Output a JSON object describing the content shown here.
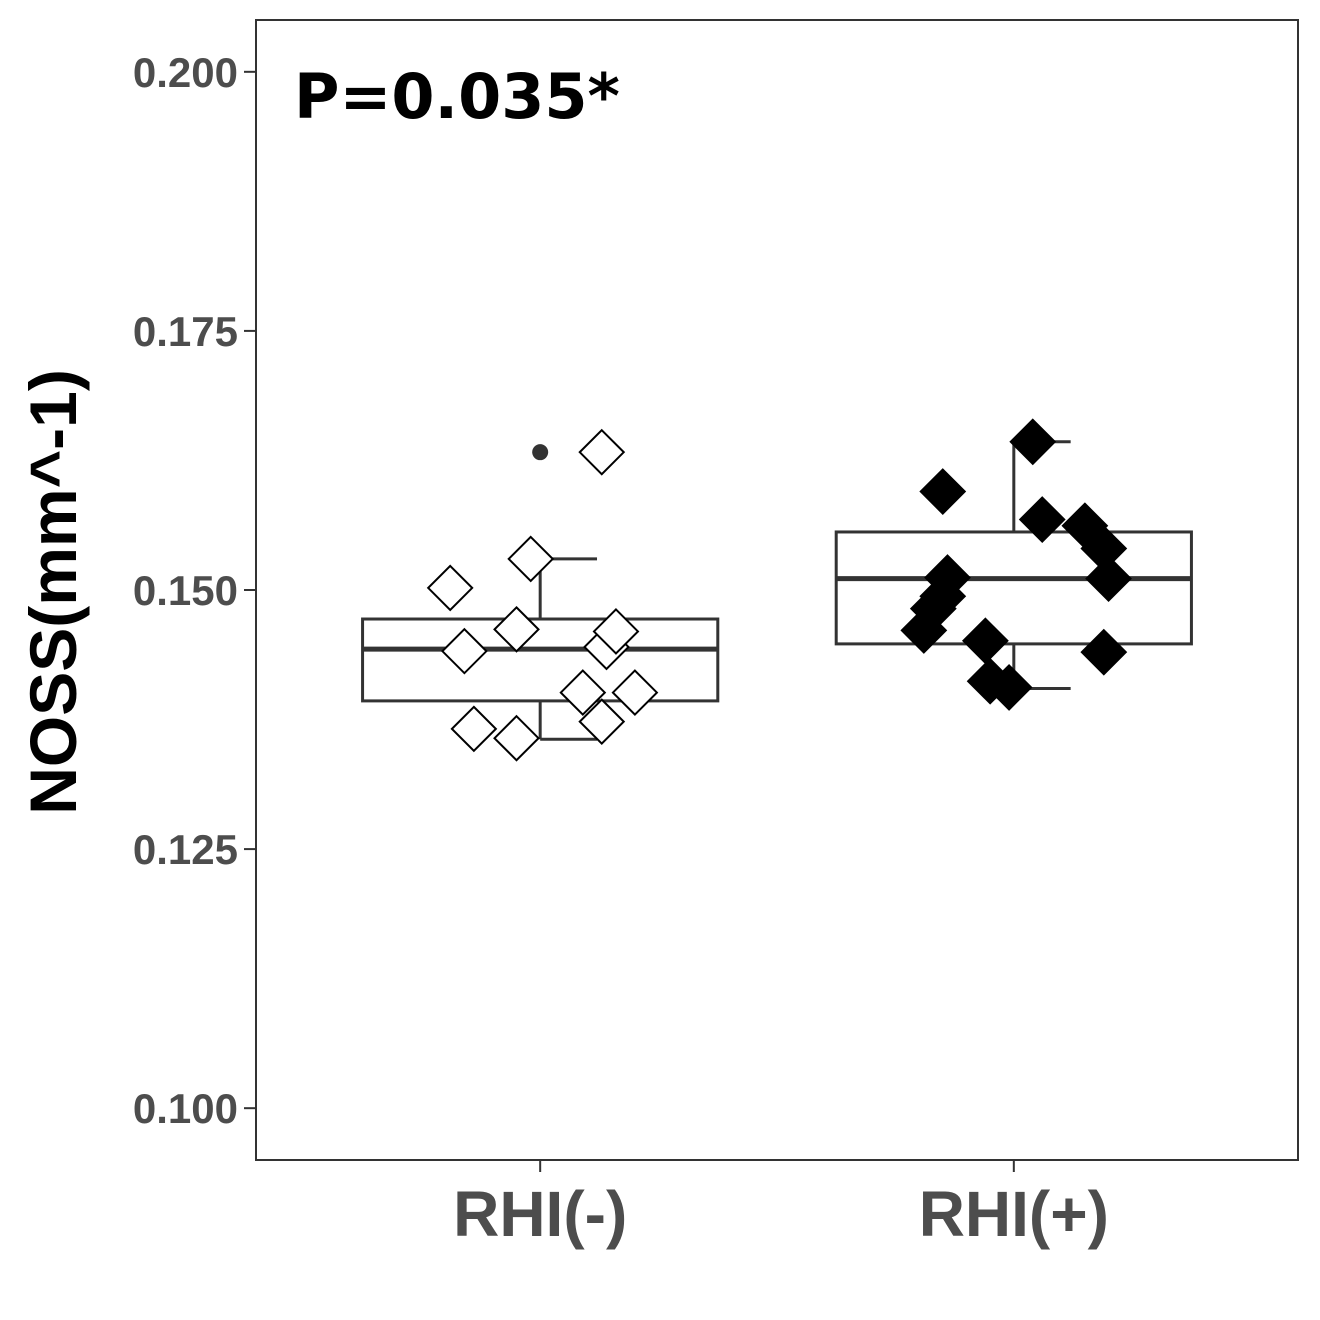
{
  "chart_data": {
    "type": "box",
    "ylabel": "NOSS(mm^-1)",
    "xlabel": "",
    "ylim": [
      0.095,
      0.205
    ],
    "y_ticks": [
      "0.100",
      "0.125",
      "0.150",
      "0.175",
      "0.200"
    ],
    "y_tick_values": [
      0.1,
      0.125,
      0.15,
      0.175,
      0.2
    ],
    "annotation": "P=0.035*",
    "grid": false,
    "legend": "none",
    "categories": [
      "RHI(-)",
      "RHI(+)"
    ],
    "groups": [
      {
        "category": "RHI(-)",
        "marker": "open-diamond",
        "box": {
          "q1": 0.1393,
          "median": 0.1443,
          "q3": 0.1472,
          "whisker_low": 0.1356,
          "whisker_high": 0.153
        },
        "outliers": [
          0.1633
        ],
        "points": [
          {
            "x": -0.19,
            "y": 0.1502
          },
          {
            "x": -0.16,
            "y": 0.1441
          },
          {
            "x": -0.14,
            "y": 0.1366
          },
          {
            "x": -0.05,
            "y": 0.1357
          },
          {
            "x": -0.05,
            "y": 0.1462
          },
          {
            "x": -0.02,
            "y": 0.153
          },
          {
            "x": 0.09,
            "y": 0.1401
          },
          {
            "x": 0.13,
            "y": 0.1373
          },
          {
            "x": 0.13,
            "y": 0.1633
          },
          {
            "x": 0.14,
            "y": 0.1445
          },
          {
            "x": 0.16,
            "y": 0.146
          },
          {
            "x": 0.2,
            "y": 0.1401
          }
        ]
      },
      {
        "category": "RHI(+)",
        "marker": "filled-diamond",
        "box": {
          "q1": 0.1448,
          "median": 0.1511,
          "q3": 0.1556,
          "whisker_low": 0.1405,
          "whisker_high": 0.1643
        },
        "outliers": [],
        "points": [
          {
            "x": -0.19,
            "y": 0.1461
          },
          {
            "x": -0.17,
            "y": 0.1482
          },
          {
            "x": -0.15,
            "y": 0.1494
          },
          {
            "x": -0.14,
            "y": 0.1512
          },
          {
            "x": -0.15,
            "y": 0.1595
          },
          {
            "x": -0.06,
            "y": 0.1451
          },
          {
            "x": -0.05,
            "y": 0.1412
          },
          {
            "x": -0.01,
            "y": 0.1406
          },
          {
            "x": 0.04,
            "y": 0.1643
          },
          {
            "x": 0.06,
            "y": 0.1568
          },
          {
            "x": 0.15,
            "y": 0.1562
          },
          {
            "x": 0.19,
            "y": 0.154
          },
          {
            "x": 0.2,
            "y": 0.1511
          },
          {
            "x": 0.19,
            "y": 0.144
          }
        ]
      }
    ]
  }
}
